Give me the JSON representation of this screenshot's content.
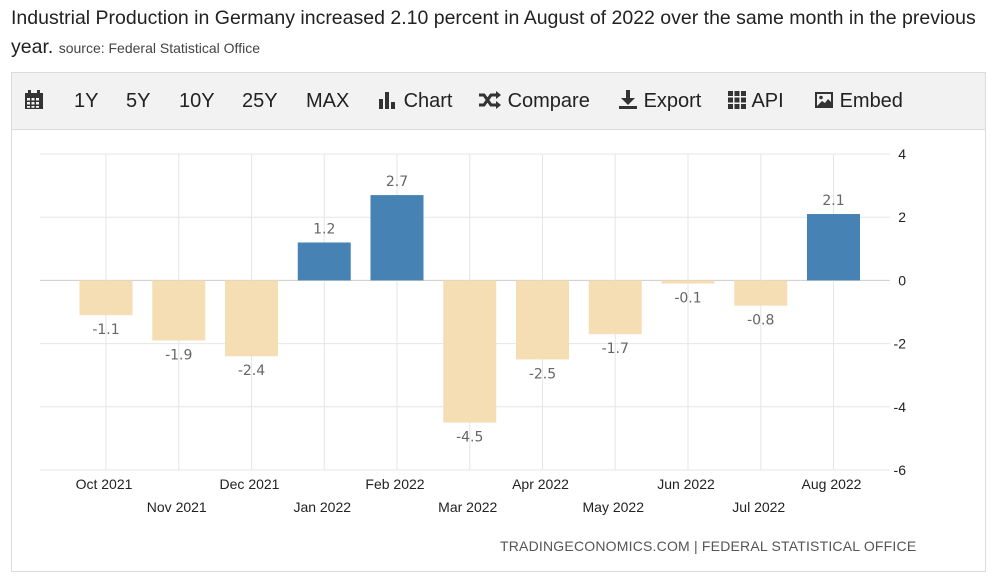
{
  "headline": {
    "title": "Industrial Production in Germany increased 2.10 percent in August of 2022 over the same month in the previous year.",
    "source": "source: Federal Statistical Office"
  },
  "toolbar": {
    "items": [
      {
        "id": "calendar",
        "label": "",
        "icon": "calendar-icon"
      },
      {
        "id": "1y",
        "label": "1Y"
      },
      {
        "id": "5y",
        "label": "5Y"
      },
      {
        "id": "10y",
        "label": "10Y"
      },
      {
        "id": "25y",
        "label": "25Y"
      },
      {
        "id": "max",
        "label": "MAX"
      },
      {
        "id": "chart",
        "label": "Chart",
        "icon": "bar-chart-icon"
      },
      {
        "id": "compare",
        "label": "Compare",
        "icon": "shuffle-icon"
      },
      {
        "id": "export",
        "label": "Export",
        "icon": "download-icon"
      },
      {
        "id": "api",
        "label": "API",
        "icon": "grid-icon"
      },
      {
        "id": "embed",
        "label": "Embed",
        "icon": "image-icon"
      }
    ]
  },
  "colors": {
    "positive": "#4682b4",
    "negative": "#f5deb3",
    "grid": "#e6e6e6",
    "zero_line": "#cccccc"
  },
  "credit": "TRADINGECONOMICS.COM | FEDERAL STATISTICAL OFFICE",
  "chart_data": {
    "type": "bar",
    "title": "Industrial Production in Germany (YoY %)",
    "categories": [
      "Oct 2021",
      "Nov 2021",
      "Dec 2021",
      "Jan 2022",
      "Feb 2022",
      "Mar 2022",
      "Apr 2022",
      "May 2022",
      "Jun 2022",
      "Jul 2022",
      "Aug 2022"
    ],
    "values": [
      -1.1,
      -1.9,
      -2.4,
      1.2,
      2.7,
      -4.5,
      -2.5,
      -1.7,
      -0.1,
      -0.8,
      2.1
    ],
    "data_labels": [
      "-1.1",
      "-1.9",
      "-2.4",
      "1.2",
      "2.7",
      "-4.5",
      "-2.5",
      "-1.7",
      "-0.1",
      "-0.8",
      "2.1"
    ],
    "y_ticks": [
      4,
      2,
      0,
      -2,
      -4,
      -6
    ],
    "ylim": [
      -6,
      4
    ],
    "y_axis_side": "right",
    "grid": true,
    "xlabel": "",
    "ylabel": ""
  }
}
